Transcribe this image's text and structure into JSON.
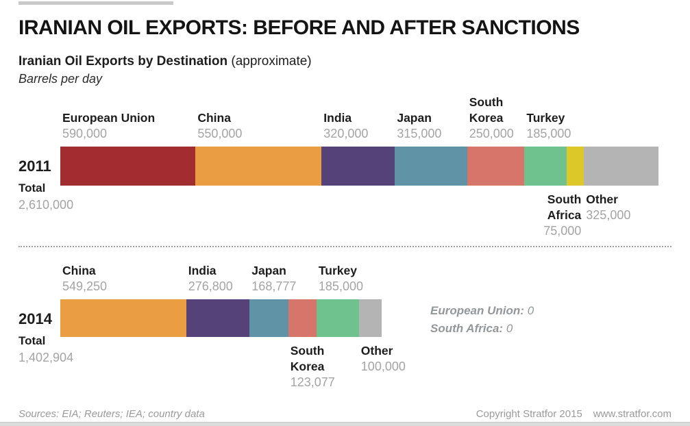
{
  "header": {
    "title": "IRANIAN OIL EXPORTS: BEFORE AND AFTER SANCTIONS",
    "subtitle_bold": "Iranian Oil Exports by Destination",
    "subtitle_note": "(approximate)",
    "unit_label": "Barrels per day"
  },
  "chart_data": {
    "type": "bar",
    "orientation": "horizontal-stacked",
    "title": "Iranian Oil Exports by Destination (approximate)",
    "unit": "Barrels per day",
    "axis_scale_total": 2610000,
    "rows": [
      {
        "year": "2011",
        "total_label": "Total",
        "total_value": 2610000,
        "total_value_label": "2,610,000",
        "segments": [
          {
            "name": "European Union",
            "value": 590000,
            "value_label": "590,000",
            "color": "#a22d30",
            "label_position": "above"
          },
          {
            "name": "China",
            "value": 550000,
            "value_label": "550,000",
            "color": "#eb9d42",
            "label_position": "above"
          },
          {
            "name": "India",
            "value": 320000,
            "value_label": "320,000",
            "color": "#544279",
            "label_position": "above"
          },
          {
            "name": "Japan",
            "value": 315000,
            "value_label": "315,000",
            "color": "#6093a5",
            "label_position": "above"
          },
          {
            "name": "South Korea",
            "label_lines": [
              "South",
              "Korea"
            ],
            "value": 250000,
            "value_label": "250,000",
            "color": "#d67569",
            "label_position": "above"
          },
          {
            "name": "Turkey",
            "value": 185000,
            "value_label": "185,000",
            "color": "#6fc28e",
            "label_position": "above"
          },
          {
            "name": "South Africa",
            "label_lines": [
              "South",
              "Africa"
            ],
            "value": 75000,
            "value_label": "75,000",
            "color": "#ddc829",
            "label_position": "below",
            "label_align": "right"
          },
          {
            "name": "Other",
            "value": 325000,
            "value_label": "325,000",
            "color": "#b5b4b4",
            "label_position": "below"
          }
        ]
      },
      {
        "year": "2014",
        "total_label": "Total",
        "total_value": 1402904,
        "total_value_label": "1,402,904",
        "segments": [
          {
            "name": "China",
            "value": 549250,
            "value_label": "549,250",
            "color": "#eb9d42",
            "label_position": "above"
          },
          {
            "name": "India",
            "value": 276800,
            "value_label": "276,800",
            "color": "#544279",
            "label_position": "above"
          },
          {
            "name": "Japan",
            "value": 168777,
            "value_label": "168,777",
            "color": "#6093a5",
            "label_position": "above"
          },
          {
            "name": "South Korea",
            "label_lines": [
              "South",
              "Korea"
            ],
            "value": 123077,
            "value_label": "123,077",
            "color": "#d67569",
            "label_position": "below"
          },
          {
            "name": "Turkey",
            "value": 185000,
            "value_label": "185,000",
            "color": "#6fc28e",
            "label_position": "above"
          },
          {
            "name": "Other",
            "value": 100000,
            "value_label": "100,000",
            "color": "#b5b4b4",
            "label_position": "below"
          }
        ]
      }
    ],
    "zero_notes": [
      {
        "label": "European Union:",
        "value": "0"
      },
      {
        "label": "South Africa:",
        "value": "0"
      }
    ]
  },
  "footer": {
    "sources": "Sources: EIA; Reuters; IEA; country data",
    "copyright": "Copyright Stratfor 2015",
    "website": "www.stratfor.com"
  },
  "accent_colors": {
    "top_bar": "#c9c9c9",
    "bottom_band": "#dbdddd",
    "value_text": "#a4a4a4",
    "note_text": "#93979b"
  }
}
